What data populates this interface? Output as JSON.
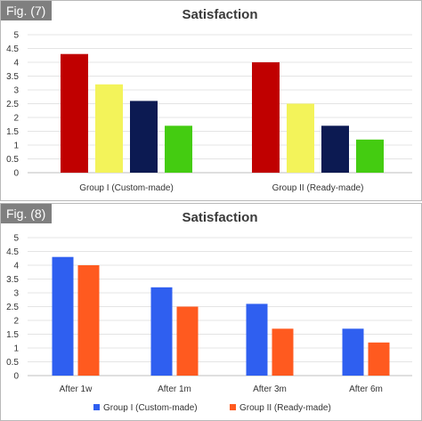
{
  "chart_data": [
    {
      "fig_label": "Fig. (7)",
      "type": "bar",
      "title": "Satisfaction",
      "xlabel": "",
      "ylabel": "",
      "categories": [
        "Group I (Custom-made)",
        "Group II (Ready-made)"
      ],
      "series": [
        {
          "color": "#c00000",
          "values": [
            4.3,
            4.0
          ]
        },
        {
          "color": "#f3f35a",
          "values": [
            3.2,
            2.5
          ]
        },
        {
          "color": "#0c1a52",
          "values": [
            2.6,
            1.7
          ]
        },
        {
          "color": "#44cc11",
          "values": [
            1.7,
            1.2
          ]
        }
      ],
      "ylim": [
        0,
        5
      ],
      "yticks": [
        "0",
        "0.5",
        "1",
        "1.5",
        "2",
        "2.5",
        "3",
        "3.5",
        "4",
        "4.5",
        "5"
      ],
      "grid": true,
      "legend": "none"
    },
    {
      "fig_label": "Fig. (8)",
      "type": "bar",
      "title": "Satisfaction",
      "xlabel": "",
      "ylabel": "",
      "categories": [
        "After 1w",
        "After 1m",
        "After 3m",
        "After 6m"
      ],
      "series": [
        {
          "name": "Group I (Custom-made)",
          "color": "#2f5ff0",
          "values": [
            4.3,
            3.2,
            2.6,
            1.7
          ]
        },
        {
          "name": "Group II (Ready-made)",
          "color": "#ff5a1f",
          "values": [
            4.0,
            2.5,
            1.7,
            1.2
          ]
        }
      ],
      "ylim": [
        0,
        5
      ],
      "yticks": [
        "0",
        "0.5",
        "1",
        "1.5",
        "2",
        "2.5",
        "3",
        "3.5",
        "4",
        "4.5",
        "5"
      ],
      "grid": true,
      "legend": "bottom"
    }
  ]
}
